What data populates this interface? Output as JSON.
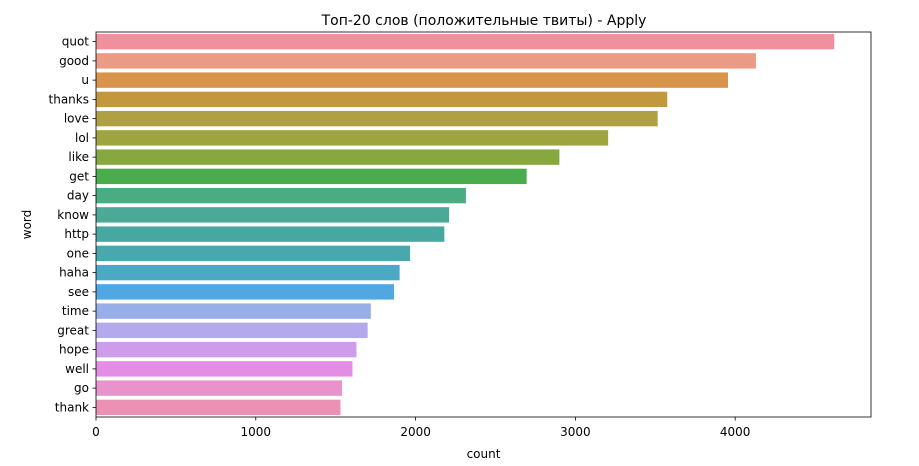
{
  "chart_data": {
    "type": "bar",
    "orientation": "horizontal",
    "title": "Топ-20 слов (положительные твиты) - Apply",
    "xlabel": "count",
    "ylabel": "word",
    "xlim": [
      0,
      4850
    ],
    "xticks": [
      0,
      1000,
      2000,
      3000,
      4000
    ],
    "xtick_labels": [
      "0",
      "1000",
      "2000",
      "3000",
      "4000"
    ],
    "grid": false,
    "legend": "none",
    "categories": [
      "quot",
      "good",
      "u",
      "thanks",
      "love",
      "lol",
      "like",
      "get",
      "day",
      "know",
      "http",
      "one",
      "haha",
      "see",
      "time",
      "great",
      "hope",
      "well",
      "go",
      "thank"
    ],
    "values": [
      4620,
      4130,
      3955,
      3575,
      3515,
      3205,
      2900,
      2695,
      2315,
      2210,
      2180,
      1965,
      1900,
      1865,
      1720,
      1700,
      1630,
      1605,
      1540,
      1530
    ],
    "colors": [
      "#f0909e",
      "#e99b84",
      "#d9944b",
      "#c3973b",
      "#afa043",
      "#9ea440",
      "#87a73f",
      "#4bac4e",
      "#4aac82",
      "#4aaa97",
      "#48a7a1",
      "#4aa7ad",
      "#4ba9c3",
      "#51a7e1",
      "#98aee8",
      "#b4a9ec",
      "#cd9ceb",
      "#e48de5",
      "#ea92cc",
      "#eb92b4"
    ]
  }
}
